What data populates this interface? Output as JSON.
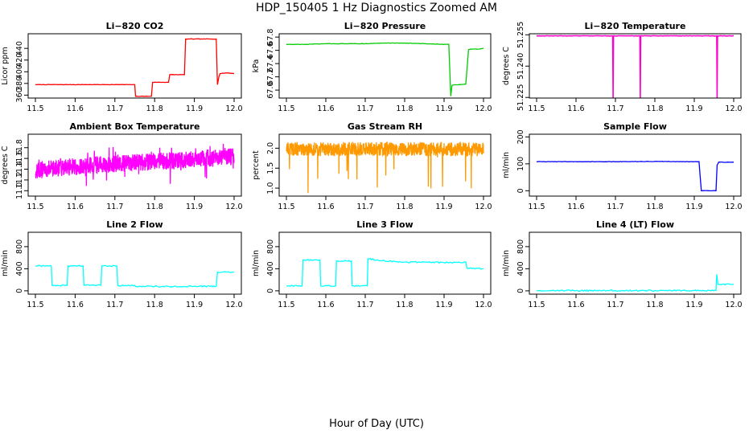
{
  "page": {
    "title": "HDP_150405  1 Hz Diagnostics Zoomed AM",
    "x_caption": "Hour of Day (UTC)"
  },
  "chart_data": [
    {
      "type": "line",
      "title": "Li−820 CO2",
      "ylabel": "Licor ppm",
      "color": "#ff0000",
      "xlim": [
        11.5,
        12.0
      ],
      "ylim": [
        355,
        465
      ],
      "xticks": [
        "11.5",
        "11.6",
        "11.7",
        "11.8",
        "11.9",
        "12.0"
      ],
      "yticks": [
        "360",
        "380",
        "400",
        "420",
        "440"
      ],
      "series": [
        {
          "x": [
            11.5,
            11.75,
            11.752,
            11.792,
            11.795,
            11.835,
            11.838,
            11.875,
            11.878,
            11.955,
            11.958,
            11.962,
            11.965,
            11.98,
            12.0
          ],
          "y": [
            378,
            378,
            358,
            358,
            382,
            382,
            395,
            395,
            456,
            456,
            378,
            392,
            397,
            398,
            397
          ]
        }
      ]
    },
    {
      "type": "line",
      "title": "Li−820 Pressure",
      "ylabel": "kPa",
      "color": "#00cc00",
      "xlim": [
        11.5,
        12.0
      ],
      "ylim": [
        66.88,
        67.85
      ],
      "xticks": [
        "11.5",
        "11.6",
        "11.7",
        "11.8",
        "11.9",
        "12.0"
      ],
      "yticks": [
        "67.0",
        "67.2",
        "67.4",
        "67.6",
        "67.8"
      ],
      "series": [
        {
          "x": [
            11.5,
            11.55,
            11.6,
            11.65,
            11.7,
            11.75,
            11.8,
            11.85,
            11.9,
            11.912,
            11.917,
            11.92,
            11.925,
            11.935,
            11.955,
            11.958,
            11.962,
            11.97,
            11.99,
            12.0
          ],
          "y": [
            67.69,
            67.69,
            67.7,
            67.7,
            67.7,
            67.71,
            67.71,
            67.7,
            67.69,
            67.69,
            66.91,
            67.07,
            67.08,
            67.08,
            67.09,
            67.3,
            67.61,
            67.62,
            67.62,
            67.63
          ]
        }
      ]
    },
    {
      "type": "line",
      "title": "Li−820 Temperature",
      "ylabel": "degrees C",
      "color": "#ff00cc",
      "xlim": [
        11.5,
        12.0
      ],
      "ylim": [
        51.2247,
        51.2555
      ],
      "xticks": [
        "11.5",
        "11.6",
        "11.7",
        "11.8",
        "11.9",
        "12.0"
      ],
      "yticks": [
        "51.225",
        "51.240",
        "51.255"
      ],
      "series": [
        {
          "x": [
            11.5,
            11.693,
            11.694,
            11.695,
            11.762,
            11.763,
            11.764,
            11.957,
            11.958,
            11.959,
            12.0
          ],
          "y": [
            51.2545,
            51.2545,
            51.2249,
            51.2545,
            51.2545,
            51.2249,
            51.2545,
            51.2545,
            51.2249,
            51.2545,
            51.2545
          ]
        }
      ]
    },
    {
      "type": "line",
      "title": "Ambient Box Temperature",
      "ylabel": "degrees C",
      "color": "#ff00ff",
      "xlim": [
        11.5,
        12.0
      ],
      "ylim": [
        10.9,
        12.05
      ],
      "xticks": [
        "11.5",
        "11.6",
        "11.7",
        "11.8",
        "11.9",
        "12.0"
      ],
      "yticks": [
        "11.0",
        "11.2",
        "11.4",
        "11.6",
        "11.8"
      ],
      "series": [
        {
          "x": [
            11.5,
            11.55,
            11.6,
            11.65,
            11.7,
            11.75,
            11.8,
            11.85,
            11.9,
            11.95,
            12.0
          ],
          "y": [
            11.38,
            11.42,
            11.45,
            11.48,
            11.5,
            11.52,
            11.54,
            11.56,
            11.58,
            11.62,
            11.65
          ]
        }
      ]
    },
    {
      "type": "line",
      "title": "Gas Stream RH",
      "ylabel": "percent",
      "color": "#ff9900",
      "xlim": [
        11.5,
        12.0
      ],
      "ylim": [
        0.8,
        2.35
      ],
      "xticks": [
        "11.5",
        "11.6",
        "11.7",
        "11.8",
        "11.9",
        "12.0"
      ],
      "yticks": [
        "1.0",
        "1.5",
        "2.0"
      ],
      "series": [
        {
          "x": [
            11.5,
            11.55,
            11.6,
            11.65,
            11.7,
            11.75,
            11.8,
            11.85,
            11.9,
            11.95,
            12.0
          ],
          "y": [
            2.0,
            1.98,
            1.97,
            1.98,
            1.98,
            1.98,
            1.97,
            1.98,
            1.97,
            1.97,
            1.97
          ]
        }
      ]
    },
    {
      "type": "line",
      "title": "Sample Flow",
      "ylabel": "ml/min",
      "color": "#0000ff",
      "xlim": [
        11.5,
        12.0
      ],
      "ylim": [
        -20,
        210
      ],
      "xticks": [
        "11.5",
        "11.6",
        "11.7",
        "11.8",
        "11.9",
        "12.0"
      ],
      "yticks": [
        "0",
        "100",
        "200"
      ],
      "series": [
        {
          "x": [
            11.5,
            11.6,
            11.7,
            11.8,
            11.9,
            11.912,
            11.918,
            11.955,
            11.958,
            11.962,
            12.0
          ],
          "y": [
            108,
            108,
            108,
            109,
            108,
            108,
            0,
            0,
            95,
            106,
            106
          ]
        }
      ]
    },
    {
      "type": "line",
      "title": "Line 2 Flow",
      "ylabel": "ml/min",
      "color": "#00ffff",
      "xlim": [
        11.5,
        12.0
      ],
      "ylim": [
        -60,
        1060
      ],
      "xticks": [
        "11.5",
        "11.6",
        "11.7",
        "11.8",
        "11.9",
        "12.0"
      ],
      "yticks": [
        "0",
        "400",
        "800"
      ],
      "series": [
        {
          "x": [
            11.5,
            11.54,
            11.542,
            11.58,
            11.582,
            11.62,
            11.622,
            11.665,
            11.667,
            11.705,
            11.707,
            11.75,
            11.752,
            11.955,
            11.958,
            12.0
          ],
          "y": [
            450,
            450,
            100,
            100,
            450,
            450,
            100,
            100,
            450,
            450,
            100,
            100,
            80,
            80,
            340,
            340
          ]
        }
      ]
    },
    {
      "type": "line",
      "title": "Line 3 Flow",
      "ylabel": "ml/min",
      "color": "#00ffff",
      "xlim": [
        11.5,
        12.0
      ],
      "ylim": [
        -60,
        1060
      ],
      "xticks": [
        "11.5",
        "11.6",
        "11.7",
        "11.8",
        "11.9",
        "12.0"
      ],
      "yticks": [
        "0",
        "400",
        "800"
      ],
      "series": [
        {
          "x": [
            11.5,
            11.54,
            11.542,
            11.585,
            11.587,
            11.625,
            11.627,
            11.665,
            11.667,
            11.705,
            11.707,
            11.75,
            11.8,
            11.85,
            11.9,
            11.955,
            11.958,
            12.0
          ],
          "y": [
            90,
            90,
            560,
            560,
            90,
            90,
            540,
            540,
            90,
            90,
            580,
            540,
            520,
            520,
            510,
            520,
            410,
            400
          ]
        }
      ]
    },
    {
      "type": "line",
      "title": "Line 4 (LT) Flow",
      "ylabel": "ml/min",
      "color": "#00ffff",
      "xlim": [
        11.5,
        12.0
      ],
      "ylim": [
        -60,
        1060
      ],
      "xticks": [
        "11.5",
        "11.6",
        "11.7",
        "11.8",
        "11.9",
        "12.0"
      ],
      "yticks": [
        "0",
        "400",
        "800"
      ],
      "series": [
        {
          "x": [
            11.5,
            11.6,
            11.7,
            11.8,
            11.9,
            11.955,
            11.957,
            11.96,
            11.962,
            12.0
          ],
          "y": [
            5,
            5,
            5,
            5,
            5,
            5,
            300,
            120,
            120,
            120
          ]
        }
      ]
    }
  ]
}
